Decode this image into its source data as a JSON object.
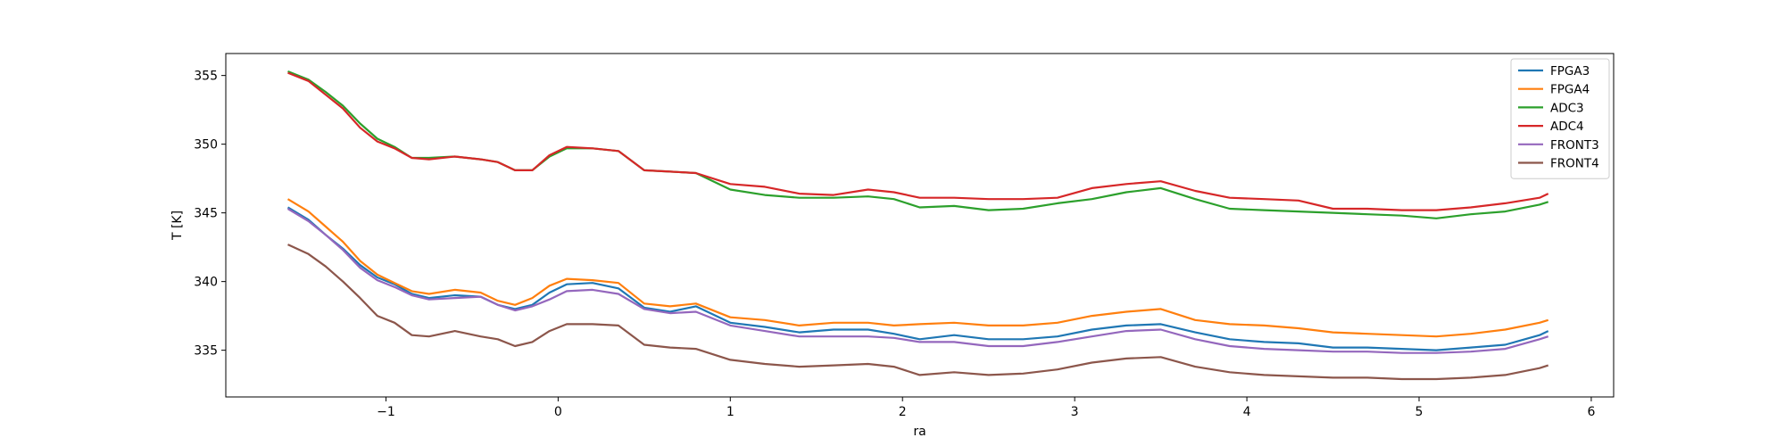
{
  "chart_data": {
    "type": "line",
    "title": "",
    "xlabel": "ra",
    "ylabel": "T [K]",
    "xlim": [
      -1.93,
      6.13
    ],
    "ylim": [
      331.6,
      356.6
    ],
    "xticks": [
      -1,
      0,
      1,
      2,
      3,
      4,
      5,
      6
    ],
    "xtick_labels": [
      "−1",
      "0",
      "1",
      "2",
      "3",
      "4",
      "5",
      "6"
    ],
    "yticks": [
      335,
      340,
      345,
      350,
      355
    ],
    "yticks_labels": [
      "335",
      "340",
      "345",
      "350",
      "355"
    ],
    "grid": false,
    "legend_position": "top-right",
    "x": [
      -1.57,
      -1.45,
      -1.35,
      -1.25,
      -1.15,
      -1.05,
      -0.95,
      -0.85,
      -0.75,
      -0.6,
      -0.45,
      -0.35,
      -0.25,
      -0.15,
      -0.05,
      0.05,
      0.2,
      0.35,
      0.5,
      0.65,
      0.8,
      1.0,
      1.2,
      1.4,
      1.6,
      1.8,
      1.95,
      2.1,
      2.3,
      2.5,
      2.7,
      2.9,
      3.1,
      3.3,
      3.5,
      3.7,
      3.9,
      4.1,
      4.3,
      4.5,
      4.7,
      4.9,
      5.1,
      5.3,
      5.5,
      5.7,
      5.75
    ],
    "series": [
      {
        "name": "FPGA3",
        "color": "#1f77b4",
        "values": [
          345.4,
          344.5,
          343.4,
          342.4,
          341.2,
          340.3,
          339.8,
          339.1,
          338.8,
          339.0,
          338.9,
          338.3,
          338.0,
          338.3,
          339.2,
          339.8,
          339.9,
          339.5,
          338.1,
          337.8,
          338.2,
          337.0,
          336.7,
          336.3,
          336.5,
          336.5,
          336.2,
          335.8,
          336.1,
          335.8,
          335.8,
          336.0,
          336.5,
          336.8,
          336.9,
          336.3,
          335.8,
          335.6,
          335.5,
          335.2,
          335.2,
          335.1,
          335.0,
          335.2,
          335.4,
          336.1,
          336.4
        ]
      },
      {
        "name": "FPGA4",
        "color": "#ff7f0e",
        "values": [
          346.0,
          345.1,
          344.0,
          342.9,
          341.5,
          340.5,
          339.9,
          339.3,
          339.1,
          339.4,
          339.2,
          338.6,
          338.3,
          338.8,
          339.7,
          340.2,
          340.1,
          339.9,
          338.4,
          338.2,
          338.4,
          337.4,
          337.2,
          336.8,
          337.0,
          337.0,
          336.8,
          336.9,
          337.0,
          336.8,
          336.8,
          337.0,
          337.5,
          337.8,
          338.0,
          337.2,
          336.9,
          336.8,
          336.6,
          336.3,
          336.2,
          336.1,
          336.0,
          336.2,
          336.5,
          337.0,
          337.2
        ]
      },
      {
        "name": "ADC3",
        "color": "#2ca02c",
        "values": [
          355.3,
          354.7,
          353.8,
          352.8,
          351.5,
          350.4,
          349.8,
          349.0,
          349.0,
          349.1,
          348.9,
          348.7,
          348.1,
          348.1,
          349.1,
          349.7,
          349.7,
          349.5,
          348.1,
          348.0,
          347.9,
          346.7,
          346.3,
          346.1,
          346.1,
          346.2,
          346.0,
          345.4,
          345.5,
          345.2,
          345.3,
          345.7,
          346.0,
          346.5,
          346.8,
          346.0,
          345.3,
          345.2,
          345.1,
          345.0,
          344.9,
          344.8,
          344.6,
          344.9,
          345.1,
          345.6,
          345.8
        ]
      },
      {
        "name": "ADC4",
        "color": "#d62728",
        "values": [
          355.2,
          354.6,
          353.6,
          352.6,
          351.2,
          350.2,
          349.7,
          349.0,
          348.9,
          349.1,
          348.9,
          348.7,
          348.1,
          348.1,
          349.2,
          349.8,
          349.7,
          349.5,
          348.1,
          348.0,
          347.9,
          347.1,
          346.9,
          346.4,
          346.3,
          346.7,
          346.5,
          346.1,
          346.1,
          346.0,
          346.0,
          346.1,
          346.8,
          347.1,
          347.3,
          346.6,
          346.1,
          346.0,
          345.9,
          345.3,
          345.3,
          345.2,
          345.2,
          345.4,
          345.7,
          346.1,
          346.4
        ]
      },
      {
        "name": "FRONT3",
        "color": "#9467bd",
        "values": [
          345.3,
          344.4,
          343.4,
          342.3,
          341.0,
          340.1,
          339.6,
          339.0,
          338.7,
          338.8,
          338.9,
          338.3,
          337.9,
          338.2,
          338.7,
          339.3,
          339.4,
          339.1,
          338.0,
          337.7,
          337.8,
          336.8,
          336.4,
          336.0,
          336.0,
          336.0,
          335.9,
          335.6,
          335.6,
          335.3,
          335.3,
          335.6,
          336.0,
          336.4,
          336.5,
          335.8,
          335.3,
          335.1,
          335.0,
          334.9,
          334.9,
          334.8,
          334.8,
          334.9,
          335.1,
          335.8,
          336.0
        ]
      },
      {
        "name": "FRONT4",
        "color": "#8c564b",
        "values": [
          342.7,
          342.0,
          341.1,
          340.0,
          338.8,
          337.5,
          337.0,
          336.1,
          336.0,
          336.4,
          336.0,
          335.8,
          335.3,
          335.6,
          336.4,
          336.9,
          336.9,
          336.8,
          335.4,
          335.2,
          335.1,
          334.3,
          334.0,
          333.8,
          333.9,
          334.0,
          333.8,
          333.2,
          333.4,
          333.2,
          333.3,
          333.6,
          334.1,
          334.4,
          334.5,
          333.8,
          333.4,
          333.2,
          333.1,
          333.0,
          333.0,
          332.9,
          332.9,
          333.0,
          333.2,
          333.7,
          333.9
        ]
      }
    ]
  }
}
